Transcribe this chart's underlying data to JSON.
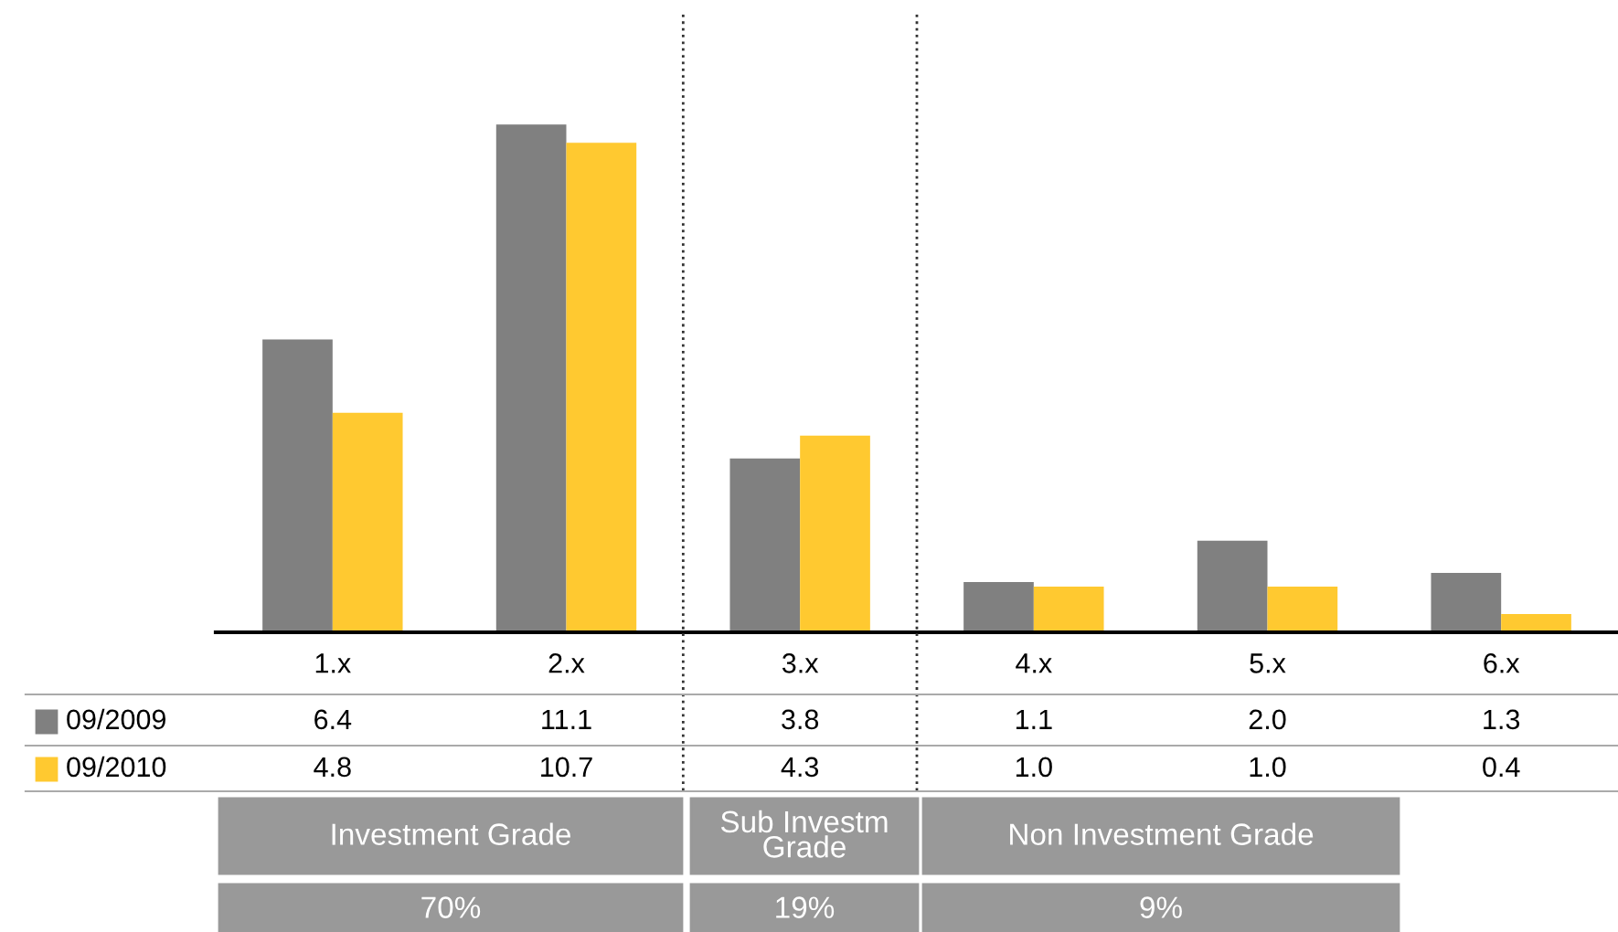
{
  "chart_data": {
    "type": "bar",
    "categories": [
      "1.x",
      "2.x",
      "3.x",
      "4.x",
      "5.x",
      "6.x"
    ],
    "series": [
      {
        "name": "09/2009",
        "color": "#808080",
        "values": [
          6.4,
          11.1,
          3.8,
          1.1,
          2.0,
          1.3
        ],
        "value_labels": [
          "6.4",
          "11.1",
          "3.8",
          "1.1",
          "2.0",
          "1.3"
        ]
      },
      {
        "name": "09/2010",
        "color": "#ffc930",
        "values": [
          4.8,
          10.7,
          4.3,
          1.0,
          1.0,
          0.4
        ],
        "value_labels": [
          "4.8",
          "10.7",
          "4.3",
          "1.0",
          "1.0",
          "0.4"
        ]
      }
    ],
    "grid": false,
    "legend": "bottom left",
    "annotations": [
      "Investment Grade",
      "70%",
      "Sub Investm\nGrade",
      "19%",
      "Non Investment Grade",
      "9%"
    ]
  }
}
